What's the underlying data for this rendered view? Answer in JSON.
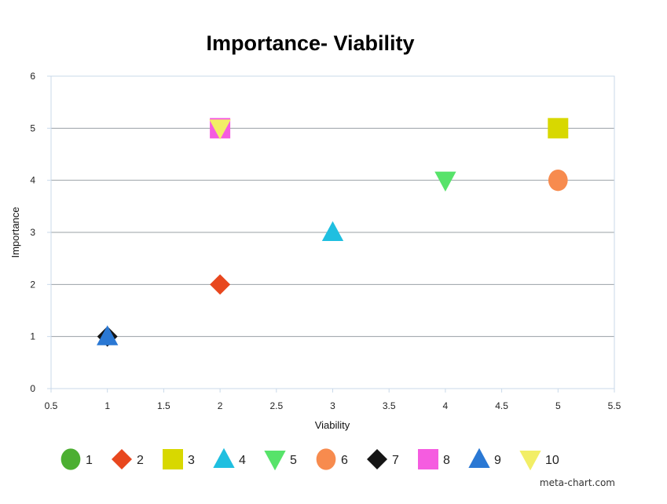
{
  "watermark": "meta-chart.com",
  "chart_data": {
    "type": "scatter",
    "title": "Importance- Viability",
    "xlabel": "Viability",
    "ylabel": "Importance",
    "xlim": [
      0.5,
      5.5
    ],
    "ylim": [
      0,
      6
    ],
    "x_ticks": [
      0.5,
      1,
      1.5,
      2,
      2.5,
      3,
      3.5,
      4,
      4.5,
      5,
      5.5
    ],
    "y_ticks": [
      0,
      1,
      2,
      3,
      4,
      5,
      6
    ],
    "grid": "horizontal",
    "legend_position": "bottom",
    "series": [
      {
        "name": "1",
        "marker": "circle",
        "color": "#4caf32",
        "points": []
      },
      {
        "name": "2",
        "marker": "diamond",
        "color": "#e8471e",
        "points": [
          {
            "x": 2,
            "y": 2
          }
        ]
      },
      {
        "name": "3",
        "marker": "square",
        "color": "#d8d800",
        "points": [
          {
            "x": 5,
            "y": 5
          }
        ]
      },
      {
        "name": "4",
        "marker": "triangle-up",
        "color": "#1fbfe0",
        "points": [
          {
            "x": 3,
            "y": 3
          }
        ]
      },
      {
        "name": "5",
        "marker": "triangle-down",
        "color": "#57e36a",
        "points": [
          {
            "x": 4,
            "y": 4
          }
        ]
      },
      {
        "name": "6",
        "marker": "circle",
        "color": "#f78b4e",
        "points": [
          {
            "x": 5,
            "y": 4
          }
        ]
      },
      {
        "name": "7",
        "marker": "diamond",
        "color": "#151515",
        "points": [
          {
            "x": 1,
            "y": 1
          }
        ]
      },
      {
        "name": "8",
        "marker": "square",
        "color": "#f55ce0",
        "points": [
          {
            "x": 2,
            "y": 5
          }
        ]
      },
      {
        "name": "9",
        "marker": "triangle-up",
        "color": "#2a78d4",
        "points": [
          {
            "x": 1,
            "y": 1
          }
        ]
      },
      {
        "name": "10",
        "marker": "triangle-down",
        "color": "#f2ee66",
        "points": [
          {
            "x": 2,
            "y": 5
          }
        ]
      }
    ]
  }
}
